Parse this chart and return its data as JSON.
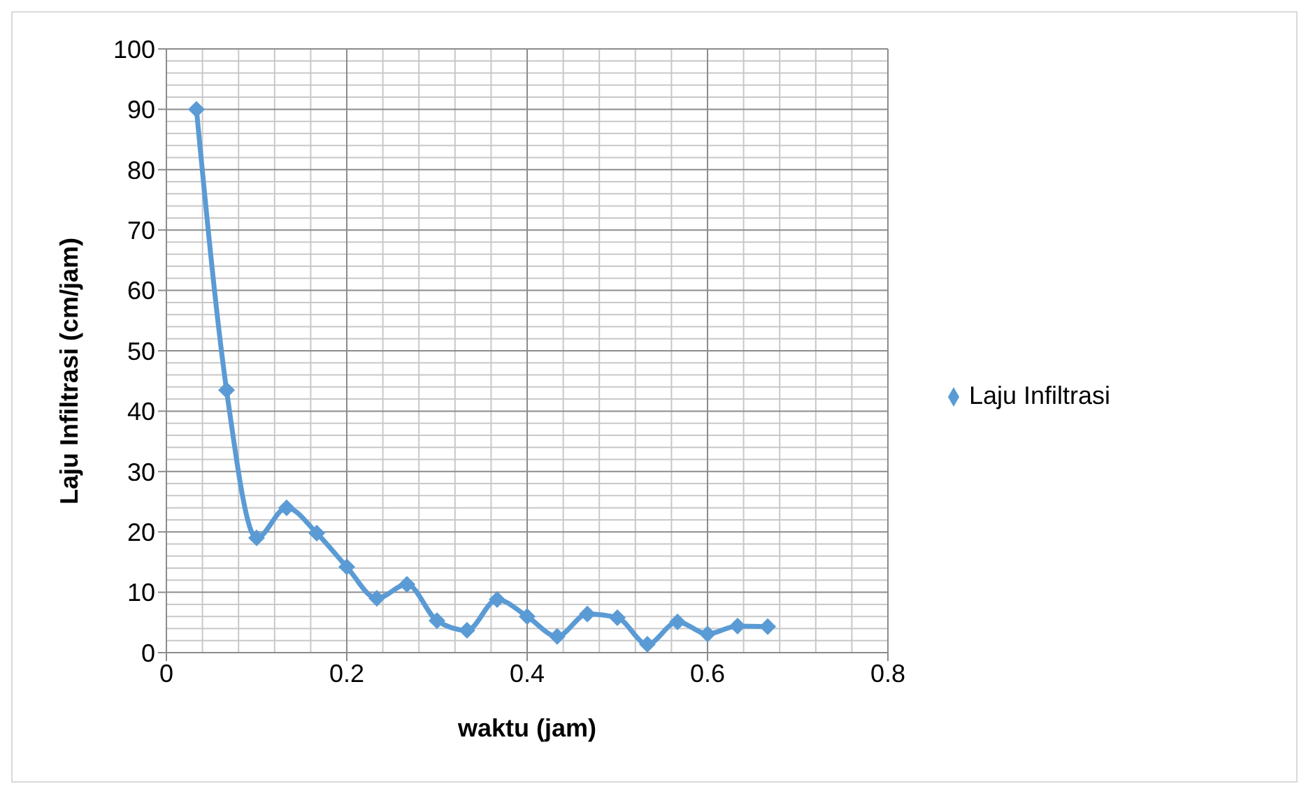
{
  "chart_data": {
    "type": "line",
    "xlabel": "waktu (jam)",
    "ylabel": "Laju Infiltrasi (cm/jam)",
    "x": [
      0.0333,
      0.0667,
      0.1,
      0.1333,
      0.1667,
      0.2,
      0.2333,
      0.2667,
      0.3,
      0.3333,
      0.3667,
      0.4,
      0.4333,
      0.4667,
      0.5,
      0.5333,
      0.5667,
      0.6,
      0.6333,
      0.6667
    ],
    "series": [
      {
        "name": "Laju Infiltrasi",
        "color": "#5b9bd5",
        "values": [
          90,
          43.5,
          19,
          24,
          19.8,
          14.2,
          9,
          11.3,
          5.3,
          3.7,
          8.8,
          6,
          2.7,
          6.4,
          5.8,
          1.4,
          5.1,
          3.1,
          4.4,
          4.3
        ]
      }
    ],
    "xlim": [
      0,
      0.8
    ],
    "xticks": [
      0,
      0.2,
      0.4,
      0.6,
      0.8
    ],
    "ylim": [
      0,
      100
    ],
    "yticks": [
      0,
      10,
      20,
      30,
      40,
      50,
      60,
      70,
      80,
      90,
      100
    ],
    "grid": true,
    "legend": "right",
    "marker": "diamond",
    "line_style": "solid"
  }
}
